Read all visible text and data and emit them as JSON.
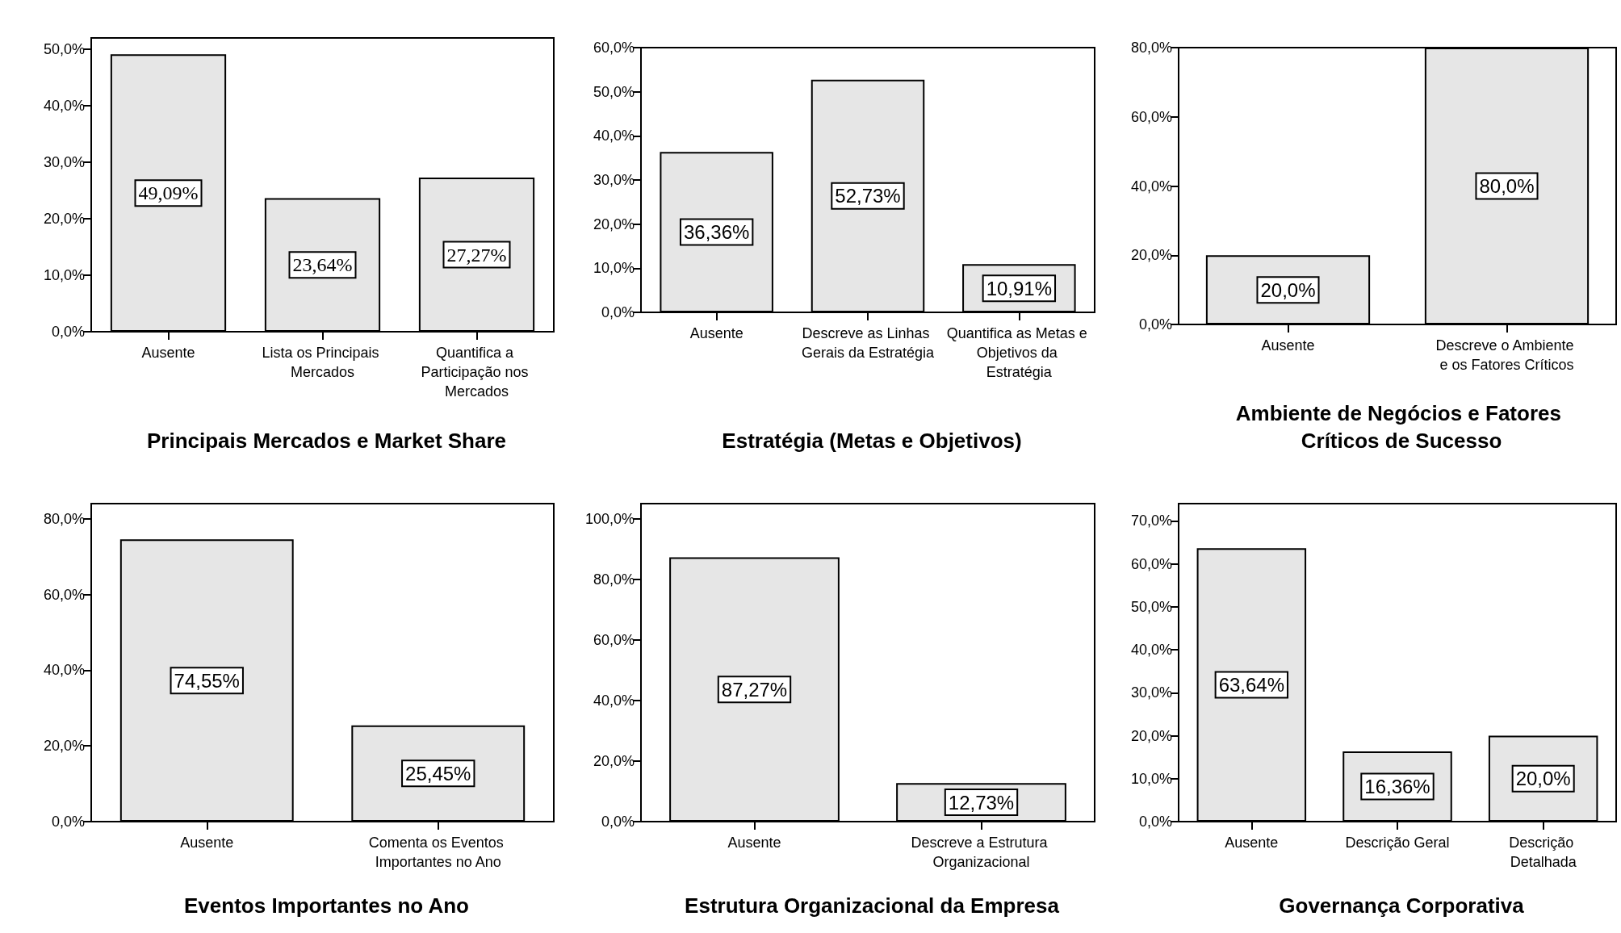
{
  "chart_data": [
    {
      "type": "bar",
      "title": "Principais Mercados e Market Share",
      "categories": [
        "Ausente",
        "Lista os Principais Mercados",
        "Quantifica a Participação nos Mercados"
      ],
      "values": [
        49.09,
        23.64,
        27.27
      ],
      "value_labels": [
        "49,09%",
        "23,64%",
        "27,27%"
      ],
      "color": "#e6e6e6",
      "ylim": [
        0,
        52
      ],
      "yticks": [
        {
          "value": 0,
          "label": "0,0%"
        },
        {
          "value": 10,
          "label": "10,0%"
        },
        {
          "value": 20,
          "label": "20,0%"
        },
        {
          "value": 30,
          "label": "30,0%"
        },
        {
          "value": 40,
          "label": "40,0%"
        },
        {
          "value": 50,
          "label": "50,0%"
        }
      ],
      "grid": false
    },
    {
      "type": "bar",
      "title": "Estratégia (Metas e Objetivos)",
      "categories": [
        "Ausente",
        "Descreve as Linhas Gerais da Estratégia",
        "Quantifica as Metas e Objetivos da Estratégia"
      ],
      "values": [
        36.36,
        52.73,
        10.91
      ],
      "value_labels": [
        "36,36%",
        "52,73%",
        "10,91%"
      ],
      "color": "#e6e6e6",
      "ylim": [
        0,
        60
      ],
      "yticks": [
        {
          "value": 0,
          "label": "0,0%"
        },
        {
          "value": 10,
          "label": "10,0%"
        },
        {
          "value": 20,
          "label": "20,0%"
        },
        {
          "value": 30,
          "label": "30,0%"
        },
        {
          "value": 40,
          "label": "40,0%"
        },
        {
          "value": 50,
          "label": "50,0%"
        },
        {
          "value": 60,
          "label": "60,0%"
        }
      ],
      "grid": false
    },
    {
      "type": "bar",
      "title": "Ambiente de Negócios e Fatores Críticos de Sucesso",
      "categories": [
        "Ausente",
        "Descreve o Ambiente e os Fatores Críticos"
      ],
      "values": [
        20.0,
        80.0
      ],
      "value_labels": [
        "20,0%",
        "80,0%"
      ],
      "color": "#e6e6e6",
      "ylim": [
        0,
        80
      ],
      "yticks": [
        {
          "value": 0,
          "label": "0,0%"
        },
        {
          "value": 20,
          "label": "20,0%"
        },
        {
          "value": 40,
          "label": "40,0%"
        },
        {
          "value": 60,
          "label": "60,0%"
        },
        {
          "value": 80,
          "label": "80,0%"
        }
      ],
      "grid": false
    },
    {
      "type": "bar",
      "title": "Eventos Importantes no Ano",
      "categories": [
        "Ausente",
        "Comenta os Eventos Importantes no Ano"
      ],
      "values": [
        74.55,
        25.45
      ],
      "value_labels": [
        "74,55%",
        "25,45%"
      ],
      "color": "#e6e6e6",
      "ylim": [
        0,
        84
      ],
      "yticks": [
        {
          "value": 0,
          "label": "0,0%"
        },
        {
          "value": 20,
          "label": "20,0%"
        },
        {
          "value": 40,
          "label": "40,0%"
        },
        {
          "value": 60,
          "label": "60,0%"
        },
        {
          "value": 80,
          "label": "80,0%"
        }
      ],
      "grid": false
    },
    {
      "type": "bar",
      "title": "Estrutura Organizacional da Empresa",
      "categories": [
        "Ausente",
        "Descreve a Estrutura Organizacional"
      ],
      "values": [
        87.27,
        12.73
      ],
      "value_labels": [
        "87,27%",
        "12,73%"
      ],
      "color": "#e6e6e6",
      "ylim": [
        0,
        105
      ],
      "yticks": [
        {
          "value": 0,
          "label": "0,0%"
        },
        {
          "value": 20,
          "label": "20,0%"
        },
        {
          "value": 40,
          "label": "40,0%"
        },
        {
          "value": 60,
          "label": "60,0%"
        },
        {
          "value": 80,
          "label": "80,0%"
        },
        {
          "value": 100,
          "label": "100,0%"
        }
      ],
      "grid": false
    },
    {
      "type": "bar",
      "title": "Governança Corporativa",
      "categories": [
        "Ausente",
        "Descrição Geral",
        "Descrição Detalhada"
      ],
      "values": [
        63.64,
        16.36,
        20.0
      ],
      "value_labels": [
        "63,64%",
        "16,36%",
        "20,0%"
      ],
      "color": "#e6e6e6",
      "ylim": [
        0,
        74
      ],
      "yticks": [
        {
          "value": 0,
          "label": "0,0%"
        },
        {
          "value": 10,
          "label": "10,0%"
        },
        {
          "value": 20,
          "label": "20,0%"
        },
        {
          "value": 30,
          "label": "30,0%"
        },
        {
          "value": 40,
          "label": "40,0%"
        },
        {
          "value": 50,
          "label": "50,0%"
        },
        {
          "value": 60,
          "label": "60,0%"
        },
        {
          "value": 70,
          "label": "70,0%"
        }
      ],
      "grid": false
    }
  ]
}
